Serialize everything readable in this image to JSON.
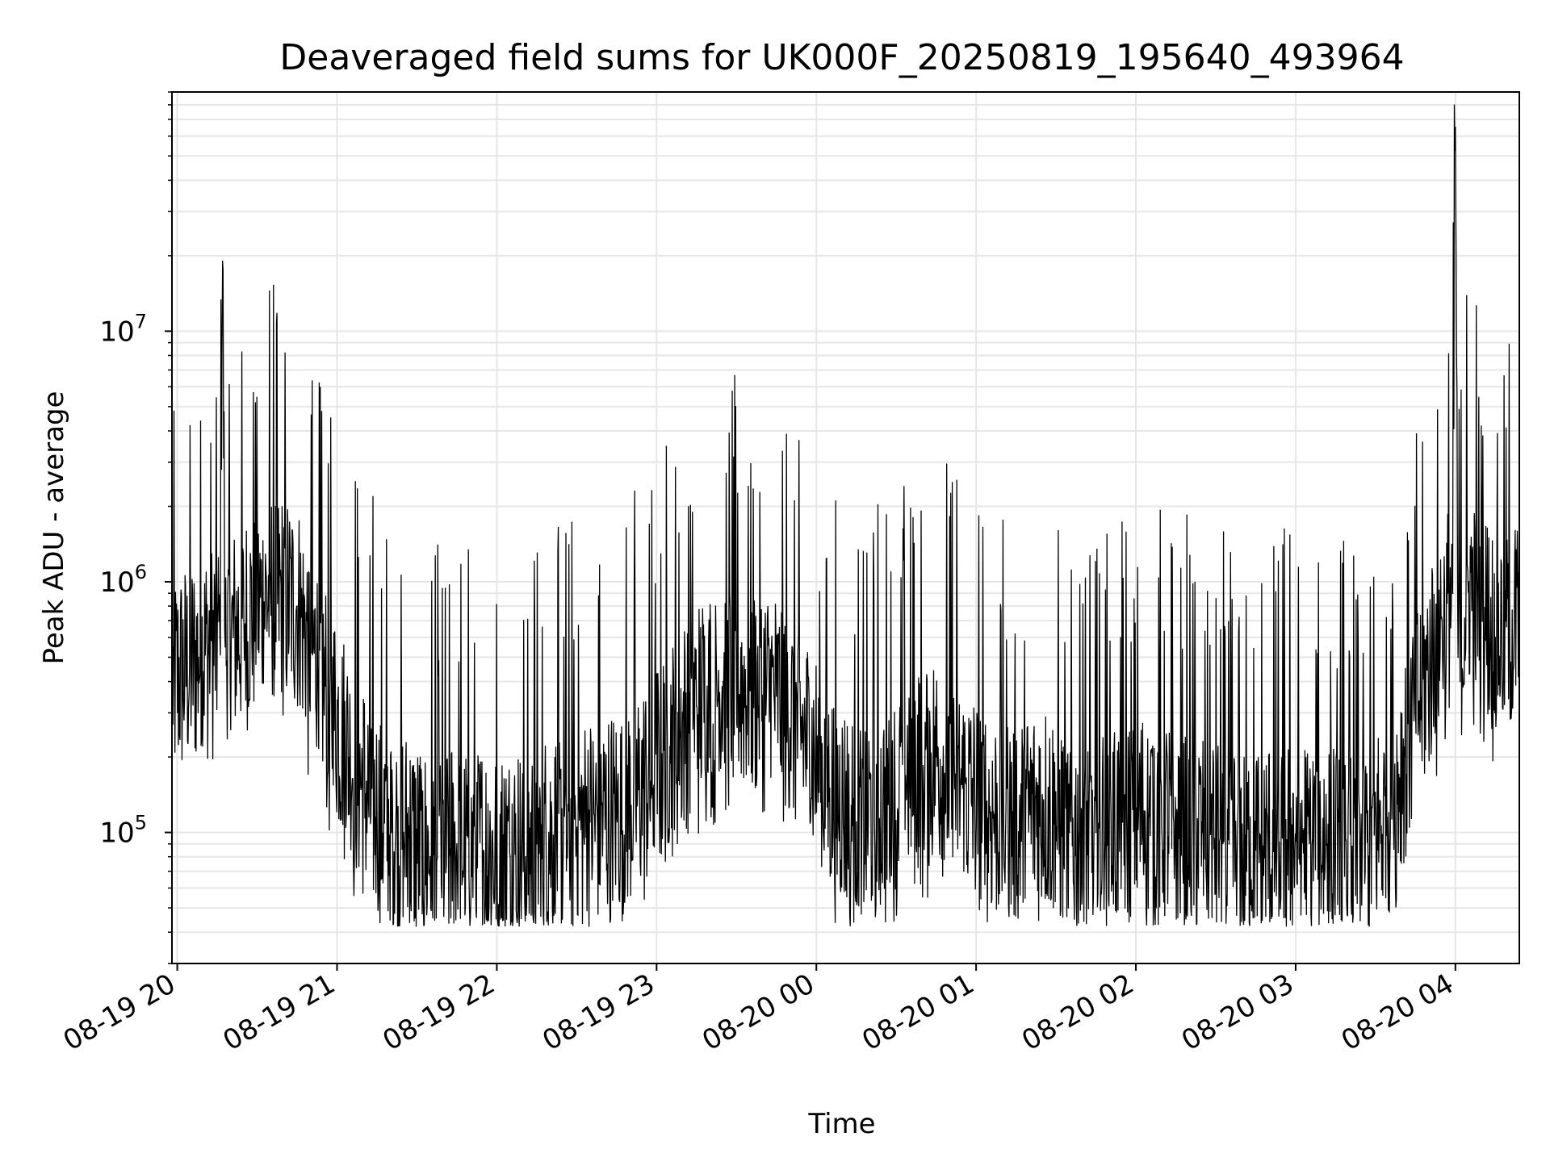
{
  "chart_data": {
    "type": "line",
    "title": "Deaveraged field sums for UK000F_20250819_195640_493964",
    "xlabel": "Time",
    "ylabel": "Peak ADU - average",
    "yscale": "log",
    "ylim": [
      30000,
      90000000
    ],
    "xlim": [
      "2025-08-19 19:58",
      "2025-08-20 04:24"
    ],
    "grid": true,
    "x_ticks": [
      {
        "label": "08-19 20",
        "value": "2025-08-19 20:00"
      },
      {
        "label": "08-19 21",
        "value": "2025-08-19 21:00"
      },
      {
        "label": "08-19 22",
        "value": "2025-08-19 22:00"
      },
      {
        "label": "08-19 23",
        "value": "2025-08-19 23:00"
      },
      {
        "label": "08-20 00",
        "value": "2025-08-20 00:00"
      },
      {
        "label": "08-20 01",
        "value": "2025-08-20 01:00"
      },
      {
        "label": "08-20 02",
        "value": "2025-08-20 02:00"
      },
      {
        "label": "08-20 03",
        "value": "2025-08-20 03:00"
      },
      {
        "label": "08-20 04",
        "value": "2025-08-20 04:00"
      }
    ],
    "y_ticks": [
      {
        "base": "10",
        "exp": "5",
        "value": 100000
      },
      {
        "base": "10",
        "exp": "6",
        "value": 1000000
      },
      {
        "base": "10",
        "exp": "7",
        "value": 10000000
      }
    ],
    "line_color": "#000000",
    "grid_color": "#e6e6e6",
    "series": [
      {
        "x": [
          "2025-08-19 19:58",
          "2025-08-19 20:08",
          "2025-08-19 20:16",
          "2025-08-19 20:17",
          "2025-08-19 20:18",
          "2025-08-19 20:25",
          "2025-08-19 20:35",
          "2025-08-19 20:45",
          "2025-08-19 20:55",
          "2025-08-19 21:05",
          "2025-08-19 21:15",
          "2025-08-19 21:25",
          "2025-08-19 21:35",
          "2025-08-19 21:45",
          "2025-08-19 21:55",
          "2025-08-19 22:05",
          "2025-08-19 22:15",
          "2025-08-19 22:25",
          "2025-08-19 22:35",
          "2025-08-19 22:45",
          "2025-08-19 22:55",
          "2025-08-19 23:05",
          "2025-08-19 23:15",
          "2025-08-19 23:25",
          "2025-08-19 23:35",
          "2025-08-19 23:45",
          "2025-08-19 23:55",
          "2025-08-20 00:05",
          "2025-08-20 00:15",
          "2025-08-20 00:25",
          "2025-08-20 00:35",
          "2025-08-20 00:45",
          "2025-08-20 00:55",
          "2025-08-20 01:05",
          "2025-08-20 01:15",
          "2025-08-20 01:25",
          "2025-08-20 01:35",
          "2025-08-20 01:45",
          "2025-08-20 01:55",
          "2025-08-20 02:05",
          "2025-08-20 02:15",
          "2025-08-20 02:25",
          "2025-08-20 02:35",
          "2025-08-20 02:45",
          "2025-08-20 02:55",
          "2025-08-20 03:05",
          "2025-08-20 03:15",
          "2025-08-20 03:25",
          "2025-08-20 03:35",
          "2025-08-20 03:45",
          "2025-08-20 03:55",
          "2025-08-20 03:59",
          "2025-08-20 04:00",
          "2025-08-20 04:01",
          "2025-08-20 04:05",
          "2025-08-20 04:15",
          "2025-08-20 04:24"
        ],
        "y": [
          400000,
          500000,
          600000,
          19000000,
          550000,
          700000,
          900000,
          800000,
          400000,
          200000,
          120000,
          100000,
          80000,
          90000,
          85000,
          80000,
          90000,
          100000,
          110000,
          120000,
          150000,
          220000,
          320000,
          400000,
          380000,
          350000,
          250000,
          150000,
          110000,
          130000,
          180000,
          200000,
          150000,
          120000,
          110000,
          130000,
          100000,
          100000,
          110000,
          120000,
          110000,
          100000,
          90000,
          85000,
          95000,
          100000,
          90000,
          85000,
          120000,
          300000,
          700000,
          900000,
          65000000,
          500000,
          1000000,
          600000,
          700000
        ]
      }
    ]
  }
}
